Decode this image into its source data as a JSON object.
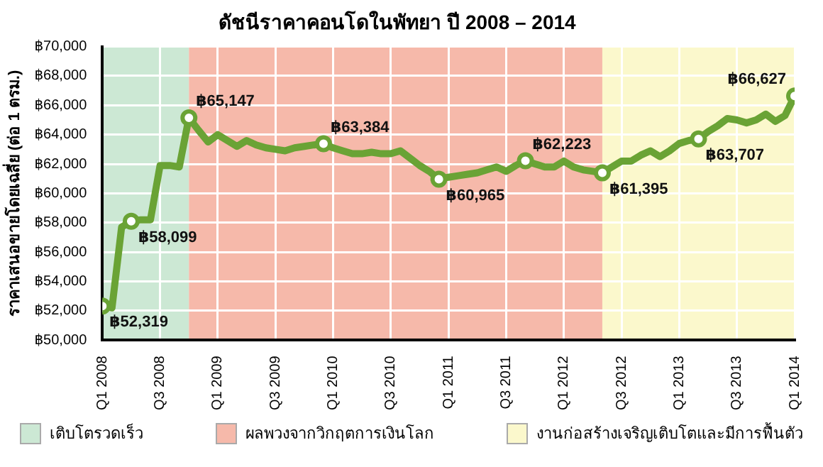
{
  "chart_data": {
    "type": "line",
    "title": "ดัชนีราคาคอนโดในพัทยา ปี 2008 – 2014",
    "ylabel": "ราคาเสนอขายโดยเฉลี่ย (ต่อ 1 ตรม.)",
    "x": [
      "2008-01",
      "2008-02",
      "2008-03",
      "2008-04",
      "2008-05",
      "2008-06",
      "2008-07",
      "2008-08",
      "2008-09",
      "2008-10",
      "2008-11",
      "2008-12",
      "2009-01",
      "2009-02",
      "2009-03",
      "2009-04",
      "2009-05",
      "2009-06",
      "2009-07",
      "2009-08",
      "2009-09",
      "2009-10",
      "2009-11",
      "2009-12",
      "2010-01",
      "2010-02",
      "2010-03",
      "2010-04",
      "2010-05",
      "2010-06",
      "2010-07",
      "2010-08",
      "2010-09",
      "2010-10",
      "2010-11",
      "2010-12",
      "2011-01",
      "2011-02",
      "2011-03",
      "2011-04",
      "2011-05",
      "2011-06",
      "2011-07",
      "2011-08",
      "2011-09",
      "2011-10",
      "2011-11",
      "2011-12",
      "2012-01",
      "2012-02",
      "2012-03",
      "2012-04",
      "2012-05",
      "2012-06",
      "2012-07",
      "2012-08",
      "2012-09",
      "2012-10",
      "2012-11",
      "2012-12",
      "2013-01",
      "2013-02",
      "2013-03",
      "2013-04",
      "2013-05",
      "2013-06",
      "2013-07",
      "2013-08",
      "2013-09",
      "2013-10",
      "2013-11",
      "2013-12",
      "2014-01"
    ],
    "series": [
      {
        "color": "#6aa335",
        "values": [
          52319,
          52200,
          57700,
          58099,
          58200,
          58200,
          61900,
          61900,
          61800,
          65147,
          64300,
          63500,
          64000,
          63600,
          63200,
          63600,
          63300,
          63100,
          63000,
          62900,
          63100,
          63200,
          63300,
          63384,
          63100,
          62900,
          62700,
          62700,
          62800,
          62700,
          62700,
          62900,
          62400,
          61900,
          61500,
          60965,
          61100,
          61200,
          61300,
          61400,
          61600,
          61800,
          61500,
          61900,
          62223,
          62000,
          61800,
          61800,
          62200,
          61800,
          61600,
          61500,
          61395,
          61800,
          62200,
          62200,
          62600,
          62900,
          62500,
          62900,
          63400,
          63600,
          63707,
          64200,
          64600,
          65100,
          65000,
          64800,
          65000,
          65400,
          64900,
          65300,
          66627
        ],
        "value_labels": [
          "฿52,319",
          null,
          null,
          "฿58,099",
          null,
          null,
          null,
          null,
          null,
          "฿65,147",
          null,
          null,
          null,
          null,
          null,
          null,
          null,
          null,
          null,
          null,
          null,
          null,
          null,
          "฿63,384",
          null,
          null,
          null,
          null,
          null,
          null,
          null,
          null,
          null,
          null,
          null,
          "฿60,965",
          null,
          null,
          null,
          null,
          null,
          null,
          null,
          null,
          "฿62,223",
          null,
          null,
          null,
          null,
          null,
          null,
          null,
          "฿61,395",
          null,
          null,
          null,
          null,
          null,
          null,
          null,
          null,
          null,
          "฿63,707",
          null,
          null,
          null,
          null,
          null,
          null,
          null,
          null,
          null,
          "฿66,627"
        ]
      }
    ],
    "xlim": [
      "2008-01",
      "2014-01"
    ],
    "xticks": [
      {
        "value": "2008-01",
        "label": "Q1 2008"
      },
      {
        "value": "2008-07",
        "label": "Q3 2008"
      },
      {
        "value": "2009-01",
        "label": "Q1 2009"
      },
      {
        "value": "2009-07",
        "label": "Q3 2009"
      },
      {
        "value": "2010-01",
        "label": "Q1 2010"
      },
      {
        "value": "2010-07",
        "label": "Q3 2010"
      },
      {
        "value": "2011-01",
        "label": "Q1 2011"
      },
      {
        "value": "2011-07",
        "label": "Q3 2011"
      },
      {
        "value": "2012-01",
        "label": "Q1 2012"
      },
      {
        "value": "2012-07",
        "label": "Q3 2012"
      },
      {
        "value": "2013-01",
        "label": "Q1 2013"
      },
      {
        "value": "2013-07",
        "label": "Q3 2013"
      },
      {
        "value": "2014-01",
        "label": "Q1 2014"
      }
    ],
    "ylim": [
      50000,
      70000
    ],
    "yticks": [
      {
        "value": 50000,
        "label": "฿50,000"
      },
      {
        "value": 52000,
        "label": "฿52,000"
      },
      {
        "value": 54000,
        "label": "฿54,000"
      },
      {
        "value": 56000,
        "label": "฿56,000"
      },
      {
        "value": 58000,
        "label": "฿58,000"
      },
      {
        "value": 60000,
        "label": "฿60,000"
      },
      {
        "value": 62000,
        "label": "฿62,000"
      },
      {
        "value": 64000,
        "label": "฿64,000"
      },
      {
        "value": 66000,
        "label": "฿66,000"
      },
      {
        "value": 68000,
        "label": "฿68,000"
      },
      {
        "value": 70000,
        "label": "฿70,000"
      }
    ],
    "bands": [
      {
        "axis": "x",
        "from": "2008-01",
        "to": "2008-10",
        "label": "เติบโตรวดเร็ว",
        "color": "#cce8d4"
      },
      {
        "axis": "x",
        "from": "2008-10",
        "to": "2012-05",
        "label": "ผลพวงจากวิกฤตการเงินโลก",
        "color": "#f6b9aa"
      },
      {
        "axis": "x",
        "from": "2012-05",
        "to": "2014-01",
        "label": "งานก่อสร้างเจริญเติบโตและมีการฟื้นตัว",
        "color": "#fbf8cc"
      }
    ],
    "legend": "bottom",
    "grid": true,
    "line_style": "solid"
  }
}
